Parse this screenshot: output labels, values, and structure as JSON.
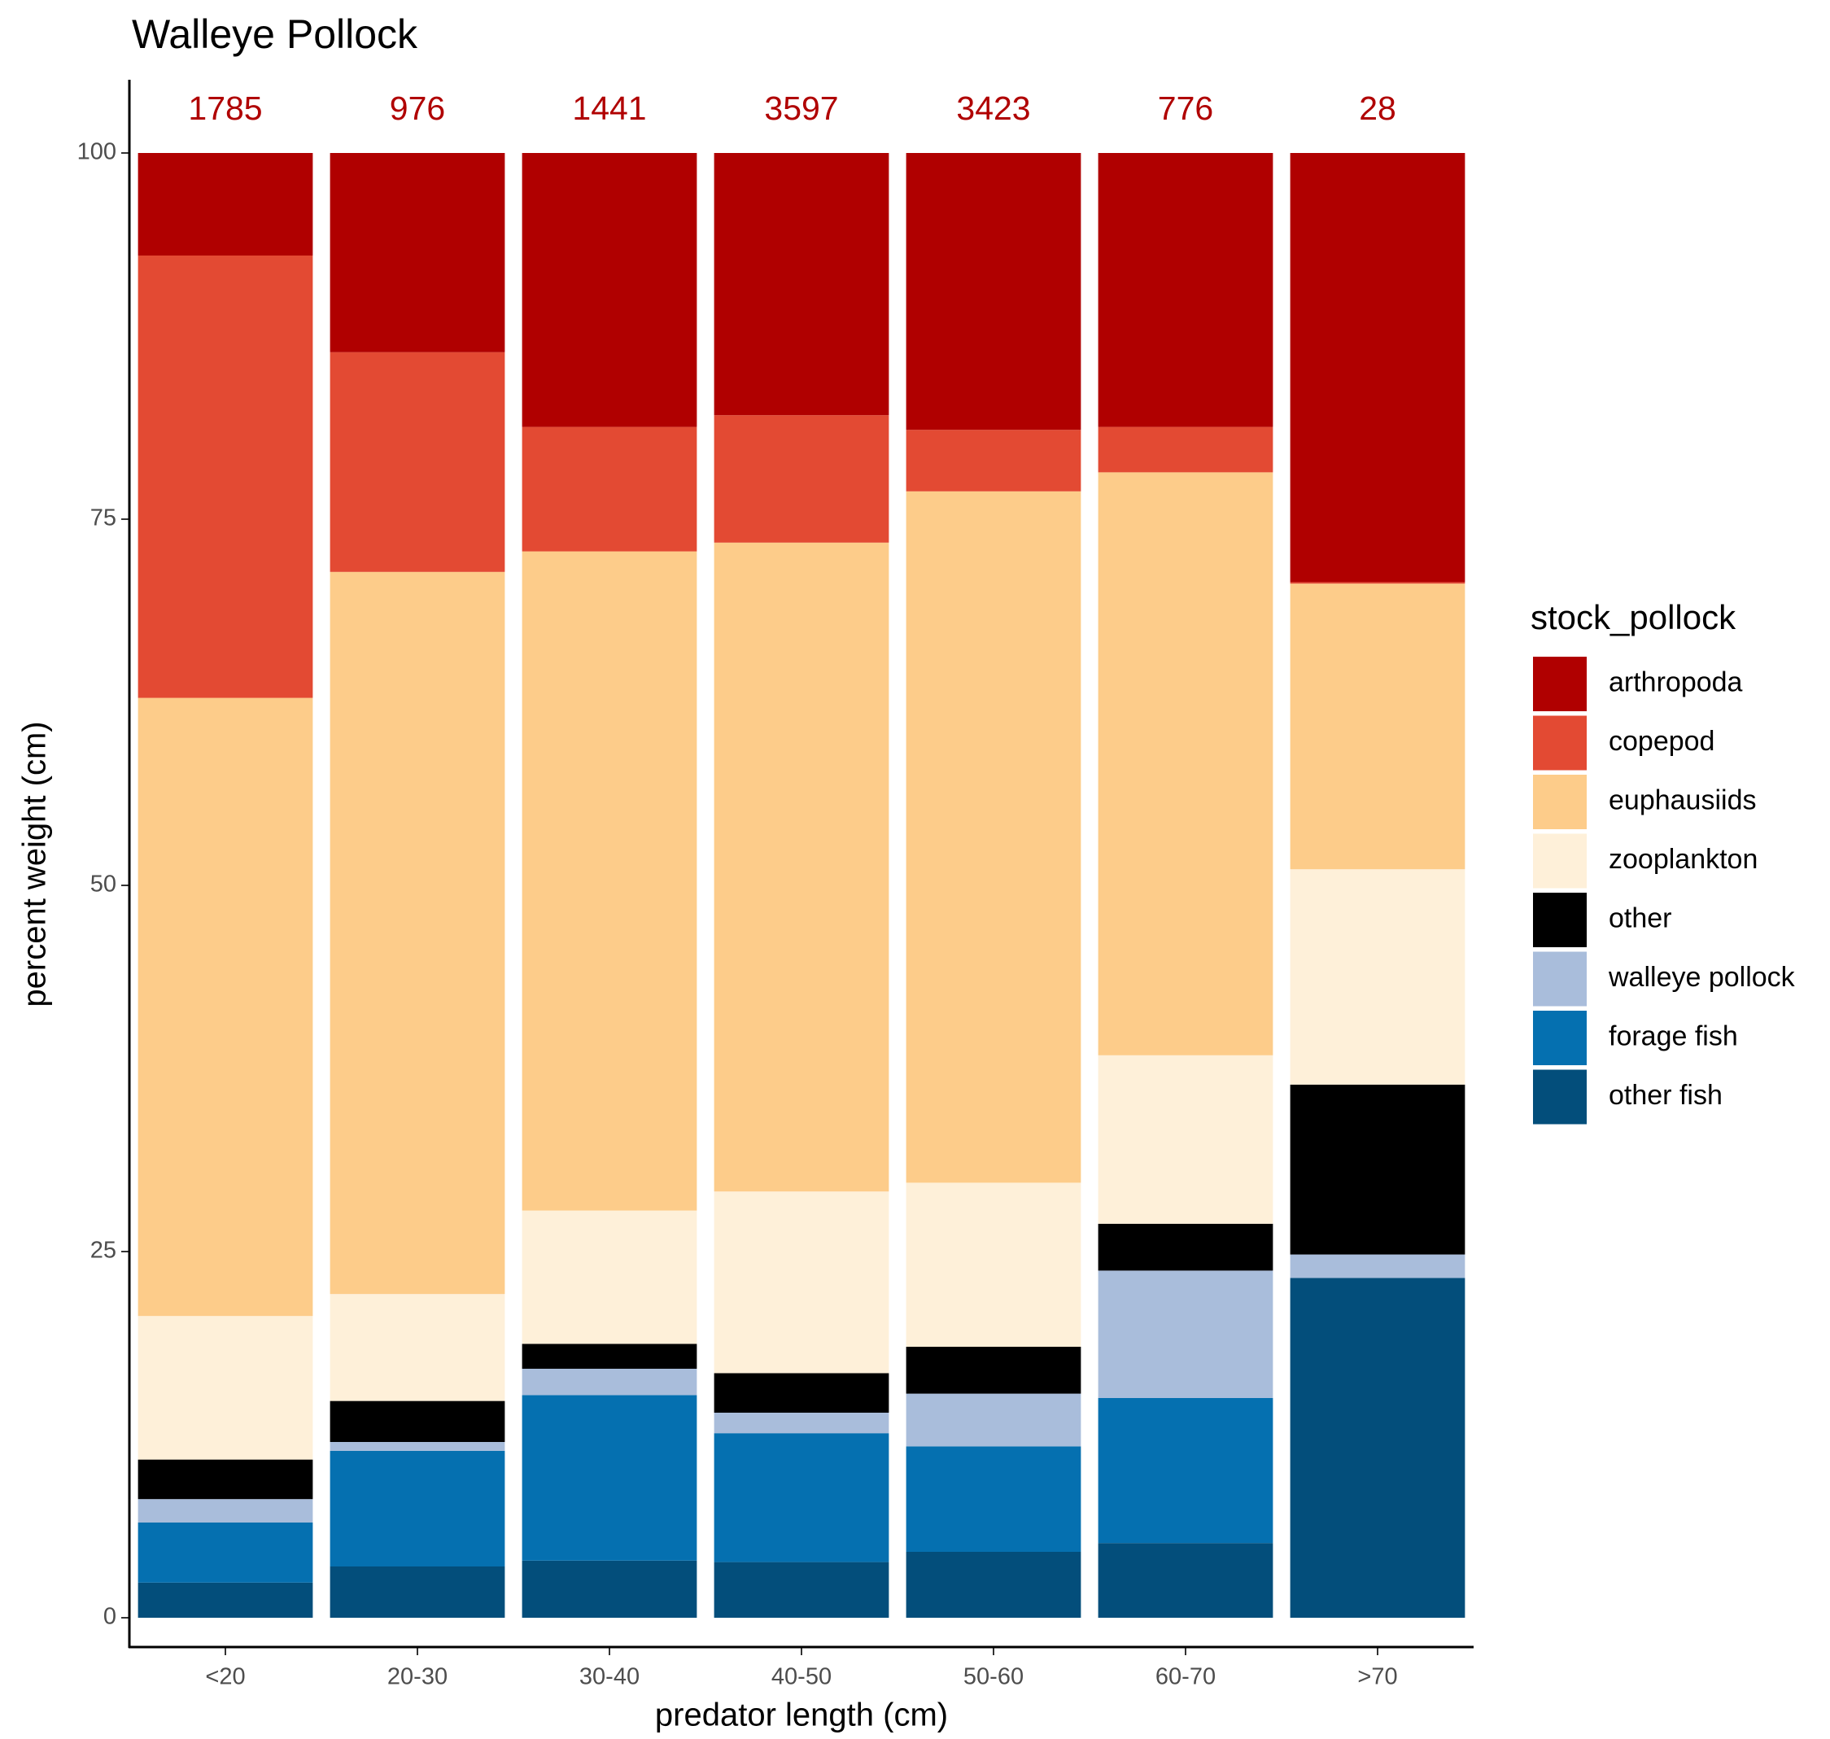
{
  "chart_data": {
    "type": "stacked_bar",
    "title": "Walleye Pollock",
    "xlabel": "predator length (cm)",
    "ylabel": "percent weight (cm)",
    "legend_title": "stock_pollock",
    "legend_position": "right",
    "categories": [
      "<20",
      "20-30",
      "30-40",
      "40-50",
      "50-60",
      "60-70",
      ">70"
    ],
    "annotations": [
      "1785",
      "976",
      "1441",
      "3597",
      "3423",
      "776",
      "28"
    ],
    "annotation_color": "#b00000",
    "ylim": [
      -2,
      105
    ],
    "yticks": [
      0,
      25,
      50,
      75,
      100
    ],
    "series": [
      {
        "name": "arthropoda",
        "color": "#b00000",
        "values": [
          7.0,
          13.6,
          18.7,
          17.9,
          18.9,
          18.7,
          29.3
        ]
      },
      {
        "name": "copepod",
        "color": "#e34a33",
        "values": [
          30.2,
          15.0,
          8.5,
          8.7,
          4.2,
          3.1,
          0.1
        ]
      },
      {
        "name": "euphausiids",
        "color": "#fdcc8a",
        "values": [
          42.2,
          49.3,
          45.0,
          44.3,
          47.2,
          39.8,
          19.5
        ]
      },
      {
        "name": "zooplankton",
        "color": "#fef0d9",
        "values": [
          9.8,
          7.3,
          9.1,
          12.4,
          11.2,
          11.5,
          14.7
        ]
      },
      {
        "name": "other",
        "color": "#000000",
        "values": [
          2.7,
          2.8,
          1.7,
          2.7,
          3.2,
          3.2,
          11.6
        ]
      },
      {
        "name": "walleye pollock",
        "color": "#a9bddb",
        "values": [
          1.6,
          0.6,
          1.8,
          1.4,
          3.6,
          8.7,
          1.6
        ]
      },
      {
        "name": "forage fish",
        "color": "#0570b0",
        "values": [
          4.1,
          7.9,
          11.3,
          8.8,
          7.2,
          9.9,
          0
        ]
      },
      {
        "name": "other fish",
        "color": "#034e7b",
        "values": [
          2.4,
          3.5,
          3.9,
          3.8,
          4.5,
          5.1,
          23.2
        ]
      }
    ]
  }
}
